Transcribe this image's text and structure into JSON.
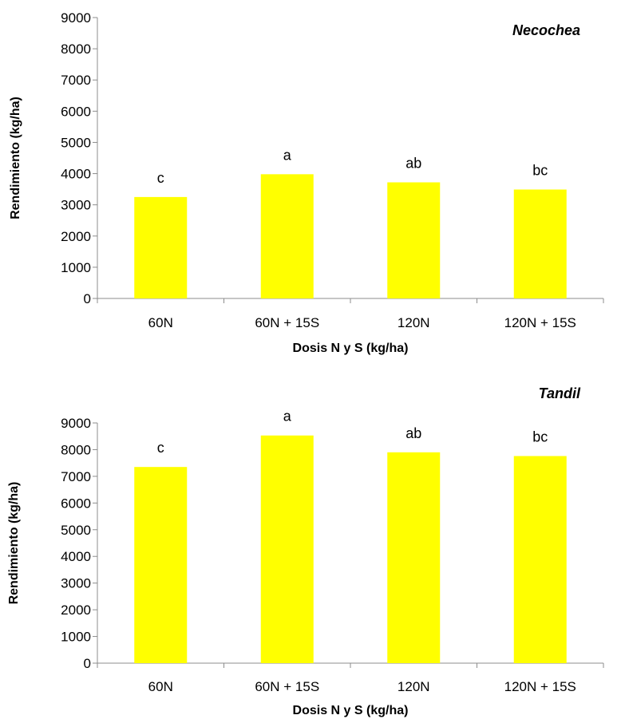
{
  "chart_data": [
    {
      "type": "bar",
      "title": "Necochea",
      "xlabel": "Dosis N y S (kg/ha)",
      "ylabel": "Rendimiento (kg/ha)",
      "categories": [
        "60N",
        "60N + 15S",
        "120N",
        "120N + 15S"
      ],
      "values": [
        3250,
        3980,
        3720,
        3490
      ],
      "labels": [
        "c",
        "a",
        "ab",
        "bc"
      ],
      "ylim": [
        0,
        9000
      ],
      "yticks": [
        0,
        1000,
        2000,
        3000,
        4000,
        5000,
        6000,
        7000,
        8000,
        9000
      ],
      "bar_color": "#FFFF00",
      "grid": false,
      "legend": "none"
    },
    {
      "type": "bar",
      "title": "Tandil",
      "xlabel": "Dosis N y S (kg/ha)",
      "ylabel": "Rendimiento (kg/ha)",
      "categories": [
        "60N",
        "60N + 15S",
        "120N",
        "120N + 15S"
      ],
      "values": [
        7350,
        8530,
        7900,
        7760
      ],
      "labels": [
        "c",
        "a",
        "ab",
        "bc"
      ],
      "ylim": [
        0,
        9000
      ],
      "yticks": [
        0,
        1000,
        2000,
        3000,
        4000,
        5000,
        6000,
        7000,
        8000,
        9000
      ],
      "bar_color": "#FFFF00",
      "grid": false,
      "legend": "none"
    }
  ]
}
